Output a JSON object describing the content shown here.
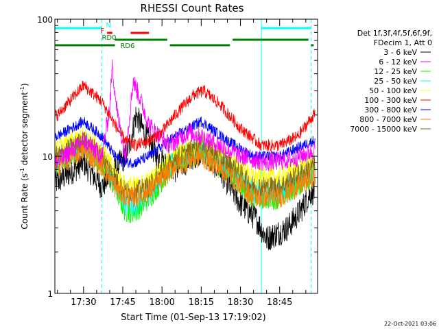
{
  "chart_data": {
    "type": "line",
    "title": "RHESSI Count Rates",
    "xlabel": "Start Time (01-Sep-13 17:19:02)",
    "ylabel_parts": [
      "Count Rate (s",
      "-1",
      " detector segment",
      "-1",
      ")"
    ],
    "yscale": "log",
    "ylim": [
      1,
      100
    ],
    "xlim": [
      "17:19:02",
      "18:59:30"
    ],
    "xticks": [
      "17:30",
      "17:45",
      "18:00",
      "18:15",
      "18:30",
      "18:45"
    ],
    "yticks": [
      "1",
      "10",
      "100"
    ],
    "legend_header": [
      "Det 1f,3f,4f,5f,6f,9f,",
      "FDecim 1, Att 0"
    ],
    "legend_position": "right",
    "series": [
      {
        "name": "3 - 6 keV",
        "color": "#000000",
        "samples": [
          [
            "17:20",
            6.5
          ],
          [
            "17:30",
            9
          ],
          [
            "17:37",
            6
          ],
          [
            "17:42",
            8
          ],
          [
            "17:46",
            10
          ],
          [
            "17:48",
            13
          ],
          [
            "17:50",
            20
          ],
          [
            "17:54",
            14
          ],
          [
            "17:58",
            10
          ],
          [
            "18:05",
            8
          ],
          [
            "18:15",
            11
          ],
          [
            "18:22",
            8
          ],
          [
            "18:30",
            4.5
          ],
          [
            "18:36",
            3.5
          ],
          [
            "18:40",
            2.5
          ],
          [
            "18:48",
            3
          ],
          [
            "18:53",
            4
          ],
          [
            "18:57",
            5.5
          ]
        ]
      },
      {
        "name": "6 - 12 keV",
        "color": "#ff00ff",
        "samples": [
          [
            "17:20",
            9
          ],
          [
            "17:30",
            13
          ],
          [
            "17:37",
            10
          ],
          [
            "17:40",
            23
          ],
          [
            "17:41",
            45
          ],
          [
            "17:43",
            20
          ],
          [
            "17:46",
            10
          ],
          [
            "17:49",
            36
          ],
          [
            "17:52",
            25
          ],
          [
            "17:55",
            17
          ],
          [
            "17:59",
            14
          ],
          [
            "18:03",
            12
          ],
          [
            "18:10",
            15
          ],
          [
            "18:15",
            14
          ],
          [
            "18:22",
            12
          ],
          [
            "18:30",
            10
          ],
          [
            "18:40",
            9
          ],
          [
            "18:50",
            9.5
          ],
          [
            "18:58",
            11
          ]
        ]
      },
      {
        "name": "12 - 25 keV",
        "color": "#00ff00",
        "samples": [
          [
            "17:20",
            9
          ],
          [
            "17:30",
            12
          ],
          [
            "17:37",
            9
          ],
          [
            "17:42",
            6
          ],
          [
            "17:46",
            4
          ],
          [
            "17:50",
            4
          ],
          [
            "17:55",
            5
          ],
          [
            "18:05",
            9
          ],
          [
            "18:15",
            11
          ],
          [
            "18:25",
            8
          ],
          [
            "18:35",
            5
          ],
          [
            "18:45",
            5
          ],
          [
            "18:58",
            7.5
          ]
        ]
      },
      {
        "name": "25 - 50 keV",
        "color": "#00ffff",
        "samples": [
          [
            "17:20",
            9.5
          ],
          [
            "17:30",
            12.5
          ],
          [
            "17:37",
            9.5
          ],
          [
            "17:42",
            6.5
          ],
          [
            "17:46",
            4.5
          ],
          [
            "17:50",
            4.5
          ],
          [
            "17:55",
            5.5
          ],
          [
            "18:05",
            9.5
          ],
          [
            "18:15",
            11.5
          ],
          [
            "18:25",
            8.5
          ],
          [
            "18:35",
            5.5
          ],
          [
            "18:45",
            5.5
          ],
          [
            "18:58",
            8
          ]
        ]
      },
      {
        "name": "50 - 100 keV",
        "color": "#ffff00",
        "samples": [
          [
            "17:20",
            11
          ],
          [
            "17:30",
            14
          ],
          [
            "17:37",
            11
          ],
          [
            "17:42",
            7.5
          ],
          [
            "17:46",
            6
          ],
          [
            "17:50",
            6
          ],
          [
            "17:55",
            6.5
          ],
          [
            "18:05",
            10
          ],
          [
            "18:15",
            13
          ],
          [
            "18:25",
            9.5
          ],
          [
            "18:35",
            7
          ],
          [
            "18:45",
            7
          ],
          [
            "18:58",
            9
          ]
        ]
      },
      {
        "name": "100 - 300 keV",
        "color": "#ff0000",
        "samples": [
          [
            "17:20",
            20
          ],
          [
            "17:30",
            33
          ],
          [
            "17:37",
            25
          ],
          [
            "17:42",
            17
          ],
          [
            "17:46",
            13
          ],
          [
            "17:50",
            12
          ],
          [
            "17:55",
            13
          ],
          [
            "18:00",
            15
          ],
          [
            "18:05",
            20
          ],
          [
            "18:12",
            28
          ],
          [
            "18:16",
            30
          ],
          [
            "18:22",
            24
          ],
          [
            "18:30",
            16
          ],
          [
            "18:38",
            12
          ],
          [
            "18:45",
            12
          ],
          [
            "18:52",
            14
          ],
          [
            "18:58",
            20
          ]
        ]
      },
      {
        "name": "300 - 800 keV",
        "color": "#0000ff",
        "samples": [
          [
            "17:20",
            14
          ],
          [
            "17:30",
            18
          ],
          [
            "17:37",
            14
          ],
          [
            "17:42",
            10
          ],
          [
            "17:46",
            9
          ],
          [
            "17:50",
            9
          ],
          [
            "17:55",
            10
          ],
          [
            "18:05",
            14
          ],
          [
            "18:15",
            18
          ],
          [
            "18:25",
            13
          ],
          [
            "18:35",
            10
          ],
          [
            "18:45",
            10
          ],
          [
            "18:58",
            13
          ]
        ]
      },
      {
        "name": "800 - 7000 keV",
        "color": "#ff8000",
        "samples": [
          [
            "17:20",
            8.5
          ],
          [
            "17:30",
            11
          ],
          [
            "17:37",
            8.5
          ],
          [
            "17:42",
            6
          ],
          [
            "17:46",
            5
          ],
          [
            "17:50",
            5
          ],
          [
            "17:55",
            5.5
          ],
          [
            "18:05",
            8.5
          ],
          [
            "18:15",
            10
          ],
          [
            "18:25",
            7.5
          ],
          [
            "18:35",
            5
          ],
          [
            "18:45",
            5
          ],
          [
            "18:58",
            7
          ]
        ]
      },
      {
        "name": "7000 - 15000 keV",
        "color": "#8b6914",
        "samples": [
          [
            "17:20",
            10
          ],
          [
            "17:30",
            13
          ],
          [
            "17:37",
            10
          ],
          [
            "17:42",
            7
          ],
          [
            "17:46",
            5.5
          ],
          [
            "17:50",
            5.5
          ],
          [
            "17:55",
            6
          ],
          [
            "18:05",
            9.5
          ],
          [
            "18:15",
            12
          ],
          [
            "18:25",
            9
          ],
          [
            "18:35",
            6
          ],
          [
            "18:45",
            6
          ],
          [
            "18:58",
            8.5
          ]
        ]
      }
    ],
    "vlines": [
      {
        "time": "17:19:02",
        "color": "#00ffff",
        "style": "solid"
      },
      {
        "time": "17:37:00",
        "color": "#00ffff",
        "style": "dashed"
      },
      {
        "time": "18:38:00",
        "color": "#00ffff",
        "style": "solid"
      },
      {
        "time": "18:57:00",
        "color": "#00ffff",
        "style": "dashed"
      }
    ],
    "flag_bars": [
      {
        "label": "N",
        "color": "#00ffff",
        "segments": [
          [
            "17:19",
            "17:37"
          ],
          [
            "18:38",
            "18:57"
          ]
        ],
        "label_at": "17:37"
      },
      {
        "label": "F",
        "color": "#ff0000",
        "segments": [
          [
            "17:39",
            "17:41"
          ],
          [
            "17:48",
            "17:55"
          ]
        ],
        "label_at": "17:38"
      },
      {
        "label": "RD0",
        "color": "#008000",
        "segments": [
          [
            "17:42",
            "18:02"
          ],
          [
            "18:27",
            "18:56"
          ]
        ],
        "label_at": "17:37"
      },
      {
        "label": "RD6",
        "color": "#008000",
        "segments": [
          [
            "17:19",
            "17:42"
          ],
          [
            "18:03",
            "18:26"
          ],
          [
            "18:57",
            "18:58"
          ]
        ],
        "label_at": "17:43"
      }
    ]
  },
  "footer": {
    "timestamp": "22-Oct-2021 03:06"
  }
}
